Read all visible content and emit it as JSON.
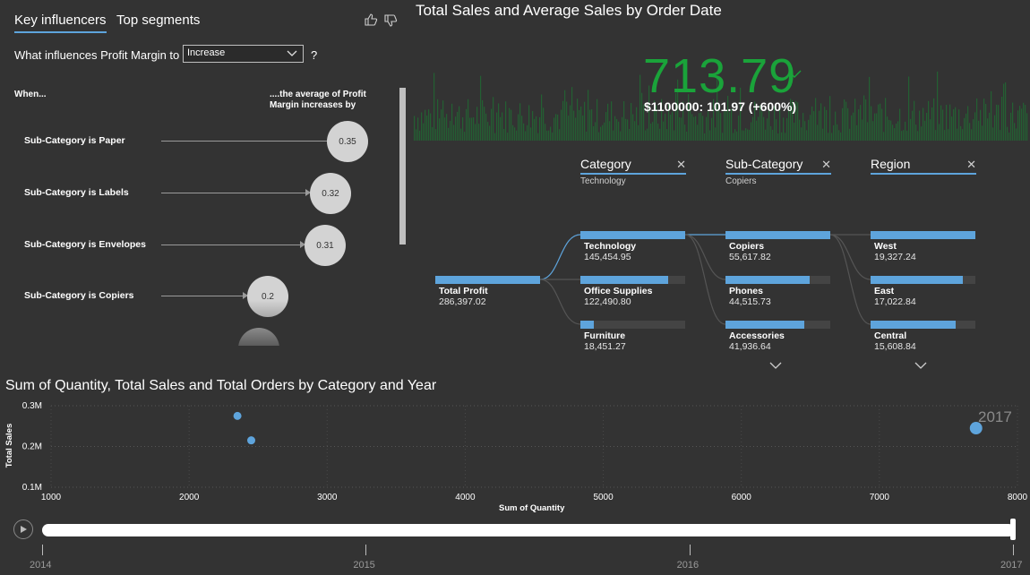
{
  "key_influencers": {
    "tabs": [
      "Key influencers",
      "Top segments"
    ],
    "question_prefix": "What influences Profit Margin to",
    "dropdown_value": "Increase",
    "question_suffix": "?",
    "col_left_header": "When...",
    "col_right_header_line1": "....the average of Profit",
    "col_right_header_line2": "Margin increases by",
    "influencers": [
      {
        "label": "Sub-Category is Paper",
        "value": "0.35"
      },
      {
        "label": "Sub-Category is Labels",
        "value": "0.32"
      },
      {
        "label": "Sub-Category is Envelopes",
        "value": "0.31"
      },
      {
        "label": "Sub-Category is Copiers",
        "value": "0.2"
      }
    ]
  },
  "kpi": {
    "title": "Total Sales and Average Sales by Order Date",
    "value": "713.79",
    "subtitle": "$1100000: 101.97 (+600%)",
    "value_color": "#1aa33a"
  },
  "decomposition_tree": {
    "levels": [
      {
        "header": "Category",
        "selected": "Technology"
      },
      {
        "header": "Sub-Category",
        "selected": "Copiers"
      },
      {
        "header": "Region",
        "selected": ""
      }
    ],
    "root": {
      "name": "Total Profit",
      "value": "286,397.02",
      "fill": 1.0
    },
    "category_nodes": [
      {
        "name": "Technology",
        "value": "145,454.95",
        "fill": 1.0
      },
      {
        "name": "Office Supplies",
        "value": "122,490.80",
        "fill": 0.84
      },
      {
        "name": "Furniture",
        "value": "18,451.27",
        "fill": 0.13
      }
    ],
    "subcategory_nodes": [
      {
        "name": "Copiers",
        "value": "55,617.82",
        "fill": 1.0
      },
      {
        "name": "Phones",
        "value": "44,515.73",
        "fill": 0.8
      },
      {
        "name": "Accessories",
        "value": "41,936.64",
        "fill": 0.75
      }
    ],
    "region_nodes": [
      {
        "name": "West",
        "value": "19,327.24",
        "fill": 1.0
      },
      {
        "name": "East",
        "value": "17,022.84",
        "fill": 0.88
      },
      {
        "name": "Central",
        "value": "15,608.84",
        "fill": 0.81
      }
    ]
  },
  "chart_data": {
    "type": "scatter",
    "title": "Sum of Quantity, Total Sales and Total Orders by Category and Year",
    "xlabel": "Sum of Quantity",
    "ylabel": "Total Sales",
    "xlim": [
      1000,
      8000
    ],
    "ylim": [
      0.1,
      0.3
    ],
    "x_ticks": [
      "1000",
      "2000",
      "3000",
      "4000",
      "5000",
      "6000",
      "7000",
      "8000"
    ],
    "y_ticks": [
      "0.3M",
      "0.2M",
      "0.1M"
    ],
    "y_tick_values": [
      0.3,
      0.2,
      0.1
    ],
    "year_label": "2017",
    "points": [
      {
        "x": 2350,
        "y": 0.275,
        "size": "small"
      },
      {
        "x": 2450,
        "y": 0.215,
        "size": "small"
      },
      {
        "x": 7700,
        "y": 0.245,
        "size": "large"
      }
    ],
    "point_color": "#5ea4dc",
    "grid": true
  },
  "play_axis": {
    "years": [
      "2014",
      "2015",
      "2016",
      "2017"
    ],
    "position": 1.0
  }
}
